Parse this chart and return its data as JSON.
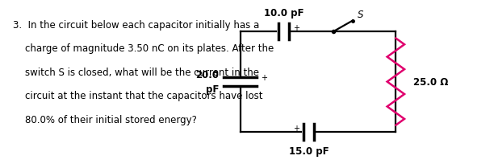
{
  "text_lines": [
    "3.  In the circuit below each capacitor initially has a",
    "    charge of magnitude 3.50 nC on its plates. After the",
    "    switch S is closed, what will be the current in the",
    "    circuit at the instant that the capacitors have lost",
    "    80.0% of their initial stored energy?"
  ],
  "cap_top_label": "10.0 pF",
  "cap_left_label_val": "20.0",
  "cap_left_label_unit": "pF",
  "cap_bottom_label": "15.0 pF",
  "resistor_label": "25.0 Ω",
  "switch_label": "S",
  "bg_color": "#ffffff",
  "text_color": "#000000",
  "circuit_color": "#000000",
  "resistor_color": "#e0006e",
  "font_size_question": 8.5,
  "font_size_circuit": 8.5,
  "circuit": {
    "L": 0.485,
    "R": 0.81,
    "T": 0.87,
    "B": 0.13
  }
}
